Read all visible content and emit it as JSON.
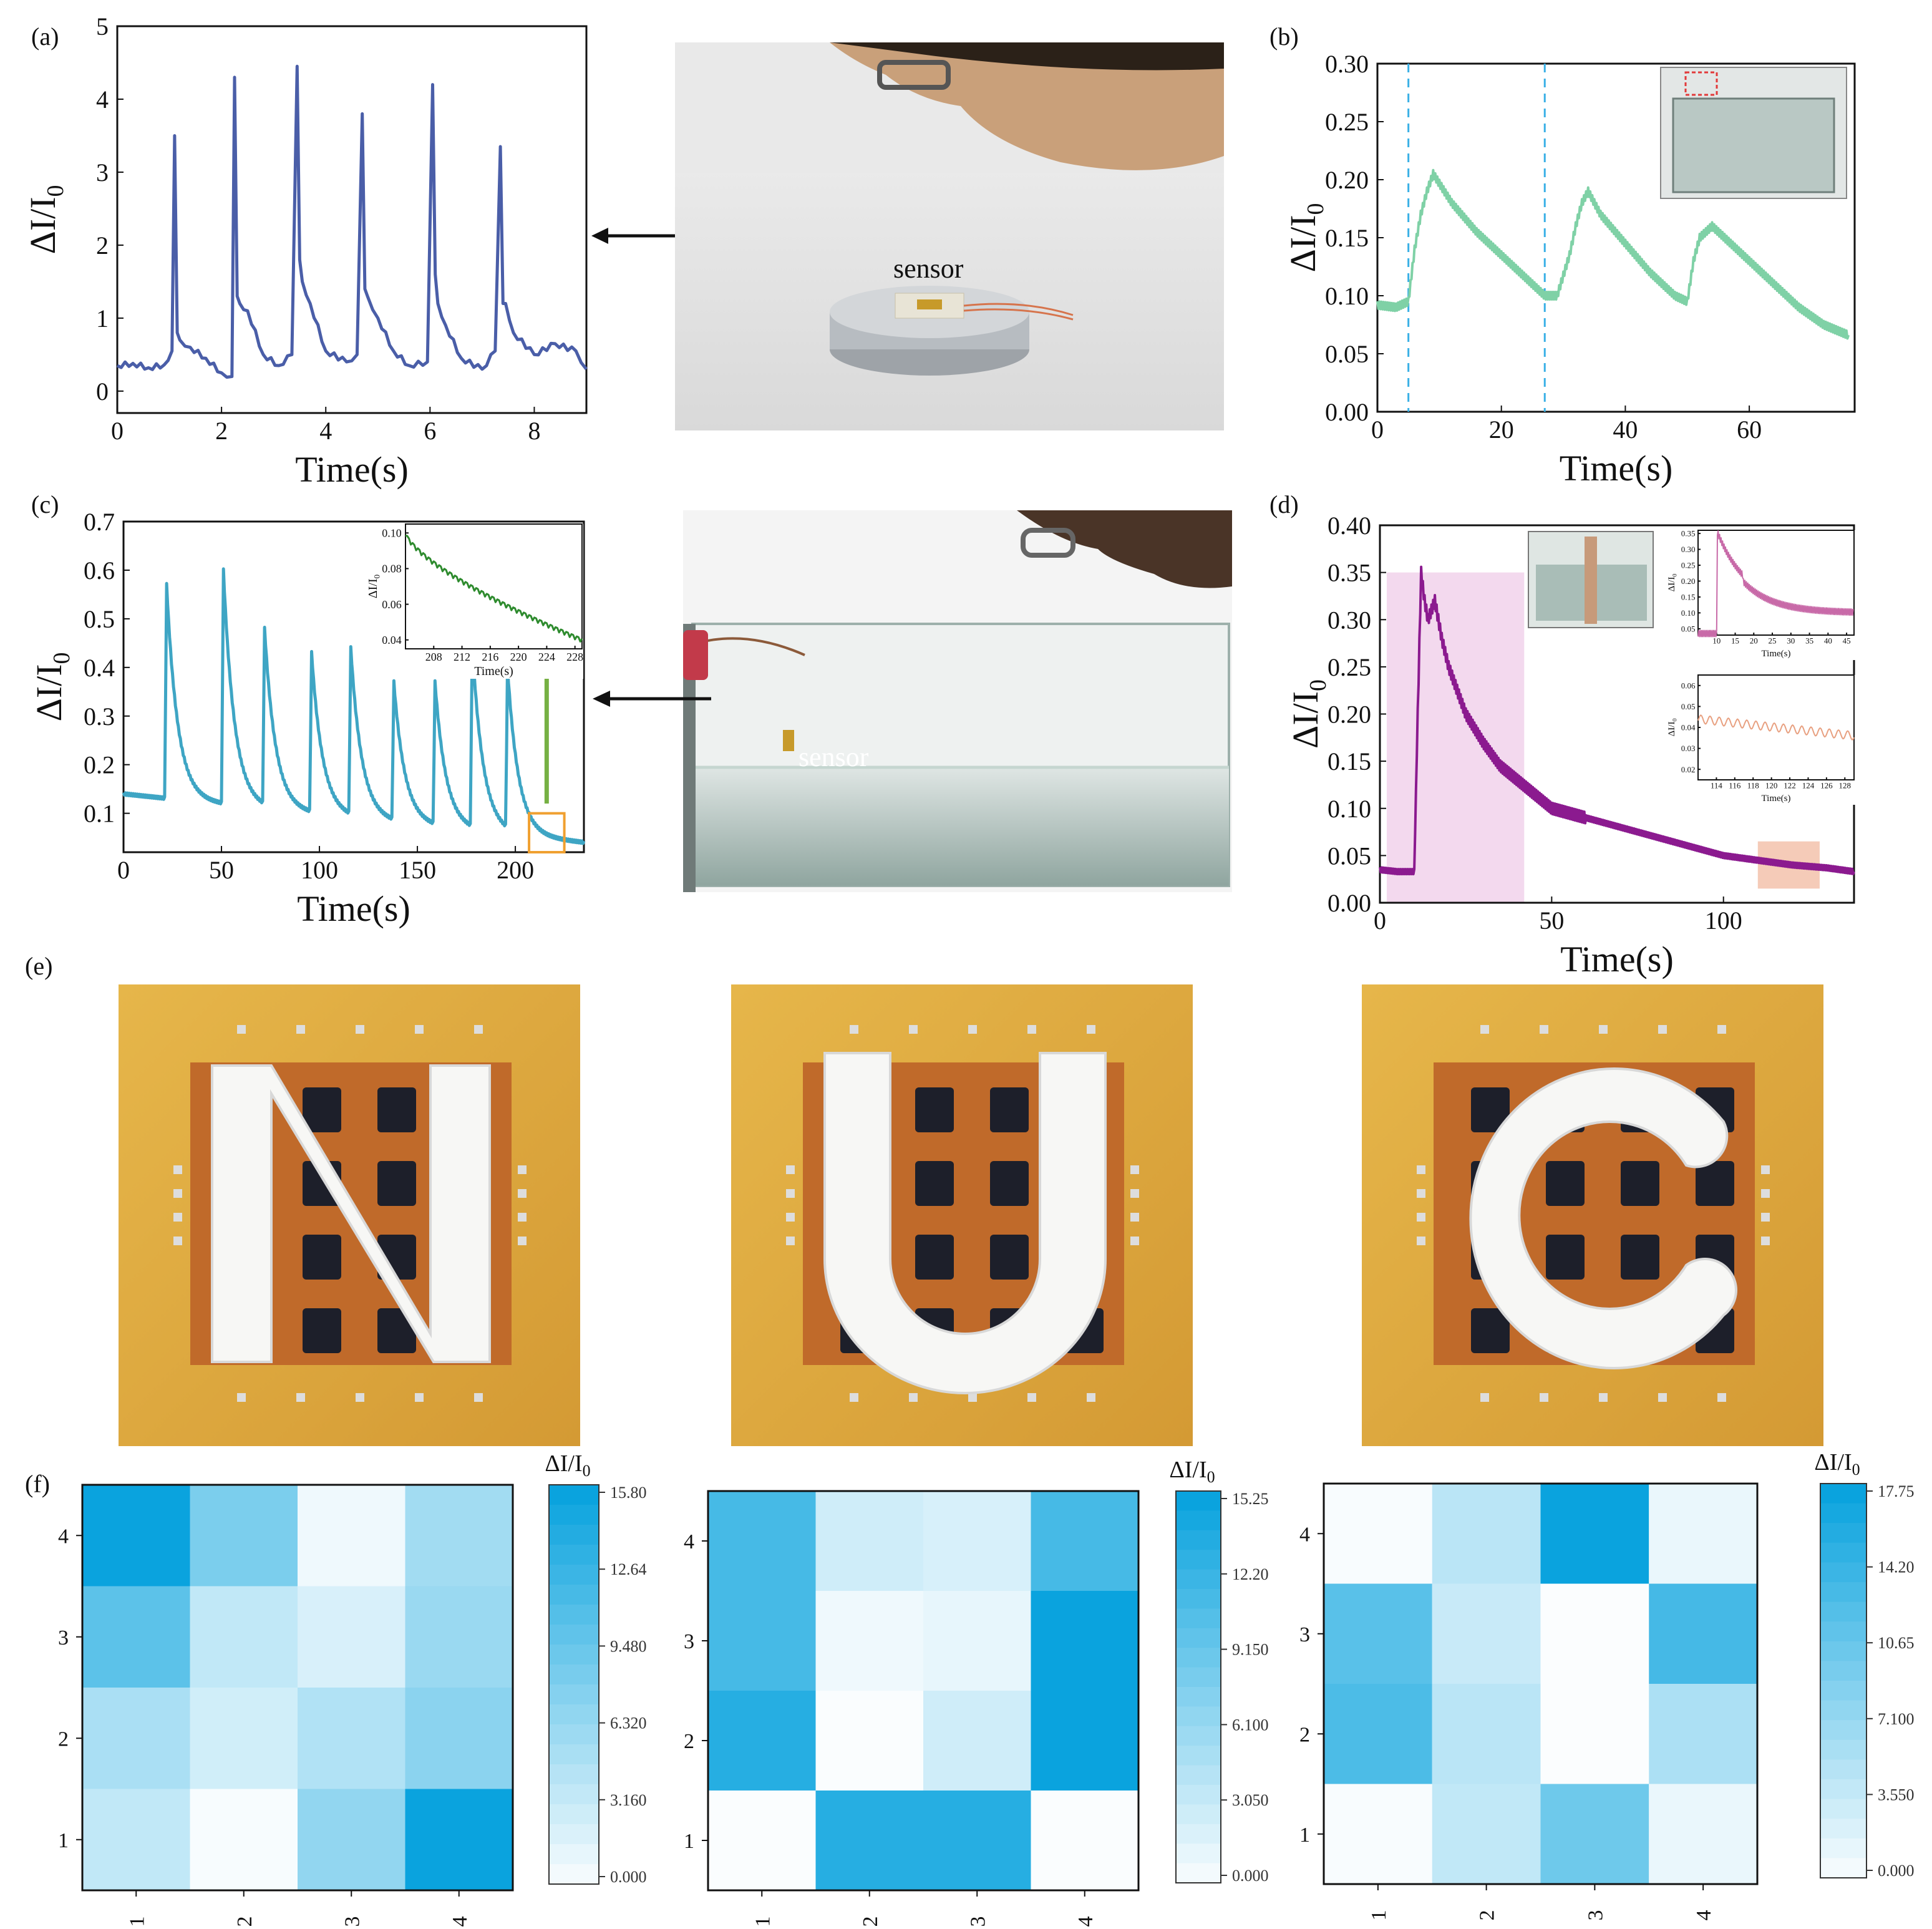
{
  "panels": {
    "a": {
      "label": "(a)",
      "photo_label": "sensor"
    },
    "b": {
      "label": "(b)"
    },
    "c": {
      "label": "(c)",
      "photo_label": "sensor"
    },
    "d": {
      "label": "(d)"
    },
    "e": {
      "label": "(e)",
      "letters": [
        "N",
        "U",
        "C"
      ]
    },
    "f": {
      "label": "(f)"
    }
  },
  "colors": {
    "a": "#4a5ea8",
    "b": "#7fd1a6",
    "c": "#3ea5c4",
    "c_inset": "#2e8b2e",
    "d": "#8b1a8f",
    "d_inset1": "#c86aa8",
    "d_inset2": "#e8a080",
    "heat_high": "#0aa3de",
    "heat_low": "#ffffff",
    "arrow_green": "#76b043",
    "box_orange": "#f0a030",
    "dash_blue": "#3ab0e6"
  },
  "chart_data": [
    {
      "id": "a",
      "type": "line",
      "xlabel": "Time(s)",
      "ylabel": "ΔI/I0",
      "xlim": [
        0,
        9
      ],
      "ylim": [
        -0.3,
        5
      ],
      "xticks": [
        0,
        2,
        4,
        6,
        8
      ],
      "yticks": [
        0,
        1,
        2,
        3,
        4,
        5
      ],
      "x": [
        0,
        0.3,
        0.6,
        0.9,
        1.05,
        1.1,
        1.15,
        1.2,
        1.4,
        1.7,
        2.0,
        2.2,
        2.25,
        2.3,
        2.35,
        2.5,
        2.8,
        3.1,
        3.35,
        3.45,
        3.5,
        3.55,
        3.7,
        4.0,
        4.4,
        4.6,
        4.7,
        4.75,
        4.8,
        5.0,
        5.3,
        5.6,
        5.95,
        6.05,
        6.1,
        6.15,
        6.3,
        6.6,
        7.0,
        7.25,
        7.35,
        7.4,
        7.45,
        7.6,
        8.0,
        8.4,
        8.8,
        9.0
      ],
      "y": [
        0.35,
        0.38,
        0.32,
        0.36,
        0.55,
        3.5,
        0.8,
        0.7,
        0.6,
        0.45,
        0.25,
        0.2,
        4.3,
        1.3,
        1.2,
        1.1,
        0.5,
        0.35,
        0.5,
        4.45,
        1.8,
        1.5,
        1.2,
        0.55,
        0.4,
        0.5,
        3.8,
        1.4,
        1.3,
        1.0,
        0.55,
        0.35,
        0.4,
        4.2,
        1.6,
        1.2,
        0.9,
        0.45,
        0.3,
        0.55,
        3.35,
        1.2,
        1.2,
        0.8,
        0.5,
        0.65,
        0.55,
        0.3
      ]
    },
    {
      "id": "b",
      "type": "line",
      "xlabel": "Time(s)",
      "ylabel": "ΔI/I0",
      "xlim": [
        0,
        77
      ],
      "ylim": [
        0,
        0.3
      ],
      "xticks": [
        0,
        20,
        40,
        60
      ],
      "yticks": [
        0.0,
        0.05,
        0.1,
        0.15,
        0.2,
        0.25,
        0.3
      ],
      "x": [
        0,
        3,
        5,
        6,
        7,
        8,
        9,
        12,
        16,
        20,
        24,
        27,
        29,
        31,
        32,
        33,
        34,
        36,
        40,
        44,
        48,
        50,
        51,
        52,
        54,
        56,
        60,
        64,
        68,
        72,
        76
      ],
      "y": [
        0.092,
        0.09,
        0.095,
        0.14,
        0.17,
        0.19,
        0.205,
        0.18,
        0.155,
        0.135,
        0.115,
        0.1,
        0.1,
        0.135,
        0.16,
        0.18,
        0.19,
        0.17,
        0.145,
        0.12,
        0.1,
        0.095,
        0.13,
        0.15,
        0.16,
        0.15,
        0.13,
        0.11,
        0.09,
        0.075,
        0.066
      ],
      "dashed_lines_x": [
        5,
        27
      ]
    },
    {
      "id": "c",
      "type": "line",
      "xlabel": "Time(s)",
      "ylabel": "ΔI/I0",
      "xlim": [
        0,
        235
      ],
      "ylim": [
        0.02,
        0.7
      ],
      "xticks": [
        0,
        50,
        100,
        150,
        200
      ],
      "yticks": [
        0.1,
        0.2,
        0.3,
        0.4,
        0.5,
        0.6,
        0.7
      ],
      "peaks": [
        [
          22,
          0.57
        ],
        [
          51,
          0.6
        ],
        [
          72,
          0.48
        ],
        [
          96,
          0.43
        ],
        [
          116,
          0.44
        ],
        [
          138,
          0.37
        ],
        [
          159,
          0.37
        ],
        [
          178,
          0.45
        ],
        [
          196,
          0.4
        ]
      ],
      "baseline_start": 0.14,
      "baseline_end": 0.04,
      "end_x": 235,
      "inset": {
        "type": "line",
        "xlabel": "Time(s)",
        "ylabel": "ΔI/I0",
        "xlim": [
          204,
          229
        ],
        "ylim": [
          0.035,
          0.105
        ],
        "xticks": [
          208,
          212,
          216,
          220,
          224,
          228
        ],
        "yticks": [
          0.04,
          0.06,
          0.08,
          0.1
        ],
        "y_start": 0.1,
        "y_end": 0.04
      }
    },
    {
      "id": "d",
      "type": "line",
      "xlabel": "Time(s)",
      "ylabel": "ΔI/I0",
      "xlim": [
        0,
        138
      ],
      "ylim": [
        0,
        0.4
      ],
      "xticks": [
        0,
        50,
        100
      ],
      "yticks": [
        0.0,
        0.05,
        0.1,
        0.15,
        0.2,
        0.25,
        0.3,
        0.35,
        0.4
      ],
      "x": [
        0,
        5,
        10,
        11,
        12,
        13,
        14,
        16,
        18,
        20,
        22,
        25,
        30,
        35,
        40,
        45,
        50,
        60,
        70,
        80,
        90,
        100,
        110,
        120,
        130,
        138
      ],
      "y": [
        0.035,
        0.033,
        0.033,
        0.2,
        0.35,
        0.32,
        0.3,
        0.32,
        0.28,
        0.25,
        0.23,
        0.2,
        0.17,
        0.145,
        0.13,
        0.115,
        0.1,
        0.09,
        0.08,
        0.07,
        0.06,
        0.05,
        0.045,
        0.04,
        0.037,
        0.033
      ],
      "highlight_regions": [
        {
          "x": [
            2,
            42
          ],
          "y": [
            0,
            0.35
          ]
        },
        {
          "x": [
            110,
            128
          ],
          "y": [
            0.015,
            0.065
          ]
        }
      ],
      "inset_top": {
        "xlim": [
          5,
          47
        ],
        "ylim": [
          0.03,
          0.36
        ],
        "xticks": [
          10,
          15,
          20,
          25,
          30,
          35,
          40,
          45
        ],
        "yticks": [
          0.05,
          0.1,
          0.15,
          0.2,
          0.25,
          0.3,
          0.35
        ],
        "xlabel": "Time(s)",
        "ylabel": "ΔI/I0"
      },
      "inset_bottom": {
        "xlim": [
          112,
          129
        ],
        "ylim": [
          0.015,
          0.065
        ],
        "xticks": [
          114,
          116,
          118,
          120,
          122,
          124,
          126,
          128
        ],
        "yticks": [
          0.02,
          0.03,
          0.04,
          0.05,
          0.06
        ],
        "xlabel": "Time(s)",
        "ylabel": "ΔI/I0"
      }
    },
    {
      "id": "f1",
      "type": "heatmap",
      "colorbar_title": "ΔI/I0",
      "xticks": [
        "1",
        "2",
        "3",
        "4"
      ],
      "yticks": [
        "1",
        "2",
        "3",
        "4"
      ],
      "values_rows_top_to_bottom": [
        [
          15.8,
          8.5,
          1.0,
          6.0
        ],
        [
          10.5,
          4.0,
          2.5,
          6.5
        ],
        [
          5.5,
          3.0,
          5.0,
          7.5
        ],
        [
          4.0,
          0.5,
          7.0,
          15.8
        ]
      ],
      "colorbar_ticks": [
        "15.80",
        "12.64",
        "9.480",
        "6.320",
        "3.160",
        "0.000"
      ],
      "vmax": 15.8
    },
    {
      "id": "f2",
      "type": "heatmap",
      "colorbar_title": "ΔI/I0",
      "xticks": [
        "1",
        "2",
        "3",
        "4"
      ],
      "yticks": [
        "1",
        "2",
        "3",
        "4"
      ],
      "values_rows_top_to_bottom": [
        [
          11.5,
          3.0,
          2.5,
          11.5
        ],
        [
          11.5,
          1.0,
          1.5,
          15.25
        ],
        [
          13.5,
          0.3,
          3.0,
          15.25
        ],
        [
          0.3,
          13.5,
          13.5,
          0.3
        ]
      ],
      "colorbar_ticks": [
        "15.25",
        "12.20",
        "9.150",
        "6.100",
        "3.050",
        "0.000"
      ],
      "vmax": 15.25
    },
    {
      "id": "f3",
      "type": "heatmap",
      "colorbar_title": "ΔI/I0",
      "xticks": [
        "1",
        "2",
        "3",
        "4"
      ],
      "yticks": [
        "1",
        "2",
        "3",
        "4"
      ],
      "values_rows_top_to_bottom": [
        [
          0.5,
          5.0,
          17.75,
          1.5
        ],
        [
          12.0,
          4.0,
          0.3,
          13.5
        ],
        [
          13.0,
          5.0,
          0.3,
          6.0
        ],
        [
          0.5,
          4.5,
          10.5,
          1.5
        ]
      ],
      "colorbar_ticks": [
        "17.75",
        "14.20",
        "10.65",
        "7.100",
        "3.550",
        "0.000"
      ],
      "vmax": 17.75
    }
  ]
}
